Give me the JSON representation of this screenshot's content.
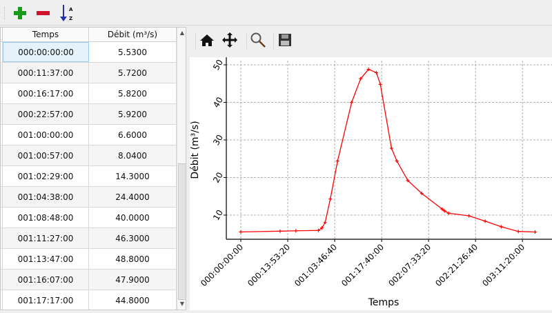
{
  "toolbar": {
    "icons": [
      "add-icon",
      "remove-icon",
      "sort-az-icon"
    ],
    "sort_label_a": "A",
    "sort_label_z": "Z"
  },
  "table": {
    "columns": [
      "Temps",
      "Débit (m³/s)"
    ],
    "rows": [
      [
        "000:00:00:00",
        "5.5300"
      ],
      [
        "000:11:37:00",
        "5.7200"
      ],
      [
        "000:16:17:00",
        "5.8200"
      ],
      [
        "000:22:57:00",
        "5.9200"
      ],
      [
        "001:00:00:00",
        "6.6000"
      ],
      [
        "001:00:57:00",
        "8.0400"
      ],
      [
        "001:02:29:00",
        "14.3000"
      ],
      [
        "001:04:38:00",
        "24.4000"
      ],
      [
        "001:08:48:00",
        "40.0000"
      ],
      [
        "001:11:27:00",
        "46.3000"
      ],
      [
        "001:13:47:00",
        "48.8000"
      ],
      [
        "001:16:07:00",
        "47.9000"
      ],
      [
        "001:17:17:00",
        "44.8000"
      ]
    ],
    "selected_row": 0
  },
  "chart_toolbar": {
    "icons": [
      "home-icon",
      "pan-icon",
      "zoom-icon",
      "save-icon"
    ]
  },
  "chart_data": {
    "type": "line",
    "xlabel": "Temps",
    "ylabel": "Débit (m³/s)",
    "color": "#ff0000",
    "marker": "+",
    "grid": true,
    "x_ticks": [
      "000:00:00:00",
      "000:13:53:20",
      "001:03:46:40",
      "001:17:40:00",
      "002:07:33:20",
      "002:21:26:40",
      "003:11:20:00"
    ],
    "y_ticks": [
      10,
      20,
      30,
      40,
      50
    ],
    "x": [
      "000:00:00:00",
      "000:11:37:00",
      "000:16:17:00",
      "000:22:57:00",
      "001:00:00:00",
      "001:00:57:00",
      "001:02:29:00",
      "001:04:38:00",
      "001:08:48:00",
      "001:11:27:00",
      "001:13:47:00",
      "001:16:07:00",
      "001:17:17:00",
      "001:20:35:00",
      "001:22:10:00",
      "002:01:25:00",
      "002:05:33:00",
      "002:11:35:00",
      "002:12:17:00",
      "002:13:30:00",
      "002:19:32:00",
      "003:00:18:00",
      "003:05:03:00",
      "003:10:07:00",
      "003:15:05:00"
    ],
    "y": [
      5.53,
      5.72,
      5.82,
      5.92,
      6.6,
      8.04,
      14.3,
      24.4,
      40.0,
      46.3,
      48.8,
      47.9,
      44.8,
      27.8,
      24.4,
      19.2,
      15.75,
      11.6,
      11.1,
      10.5,
      9.8,
      8.4,
      6.9,
      5.65,
      5.5
    ]
  }
}
